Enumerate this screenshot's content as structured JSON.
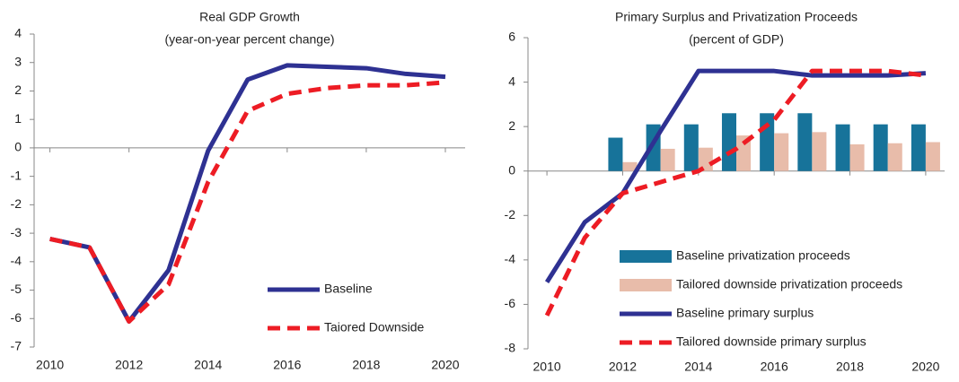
{
  "chart_data": [
    {
      "type": "line",
      "title": "Real GDP Growth",
      "subtitle": "(year-on-year percent change)",
      "x": [
        2010,
        2011,
        2012,
        2013,
        2014,
        2015,
        2016,
        2017,
        2018,
        2019,
        2020
      ],
      "xlim": [
        2009.6,
        2020.5
      ],
      "xticks": [
        2010,
        2012,
        2014,
        2016,
        2018,
        2020
      ],
      "ylim": [
        -7,
        4
      ],
      "yticks": [
        -7,
        -6,
        -5,
        -4,
        -3,
        -2,
        -1,
        0,
        1,
        2,
        3,
        4
      ],
      "legend": "lower right",
      "series": [
        {
          "name": "Baseline",
          "type": "line",
          "style": "solid",
          "color": "#2e3192",
          "values": [
            -3.2,
            -3.5,
            -6.1,
            -4.3,
            -0.1,
            2.4,
            2.9,
            2.85,
            2.8,
            2.6,
            2.5
          ]
        },
        {
          "name": "Taiored Downside",
          "type": "line",
          "style": "dashed",
          "color": "#ed1c24",
          "values": [
            -3.2,
            -3.5,
            -6.1,
            -4.8,
            -1.2,
            1.3,
            1.9,
            2.1,
            2.2,
            2.2,
            2.3
          ]
        }
      ]
    },
    {
      "type": "combo",
      "title": "Primary Surplus and Privatization Proceeds",
      "subtitle": "(percent of GDP)",
      "x": [
        2010,
        2011,
        2012,
        2013,
        2014,
        2015,
        2016,
        2017,
        2018,
        2019,
        2020
      ],
      "xlim": [
        2009.5,
        2020.5
      ],
      "xticks": [
        2010,
        2012,
        2014,
        2016,
        2018,
        2020
      ],
      "ylim": [
        -8,
        6
      ],
      "yticks": [
        -8,
        -6,
        -4,
        -2,
        0,
        2,
        4,
        6
      ],
      "legend": "lower center",
      "series": [
        {
          "name": "Baseline privatization proceeds",
          "type": "bar",
          "color": "#17739a",
          "values": [
            null,
            null,
            1.5,
            2.1,
            2.1,
            2.6,
            2.6,
            2.6,
            2.1,
            2.1,
            2.1
          ]
        },
        {
          "name": "Tailored downside privatization proceeds",
          "type": "bar",
          "color": "#e8bcaa",
          "values": [
            null,
            null,
            0.4,
            1.0,
            1.05,
            1.6,
            1.7,
            1.75,
            1.2,
            1.25,
            1.3
          ]
        },
        {
          "name": "Baseline primary surplus",
          "type": "line",
          "style": "solid",
          "color": "#2e3192",
          "values": [
            -5.0,
            -2.3,
            -1.0,
            1.8,
            4.5,
            4.5,
            4.5,
            4.3,
            4.3,
            4.3,
            4.4
          ]
        },
        {
          "name": "Tailored downside primary surplus",
          "type": "line",
          "style": "dashed",
          "color": "#ed1c24",
          "values": [
            -6.5,
            -3.0,
            -1.0,
            -0.5,
            0.0,
            1.0,
            2.3,
            4.5,
            4.5,
            4.5,
            4.3
          ]
        }
      ]
    }
  ]
}
